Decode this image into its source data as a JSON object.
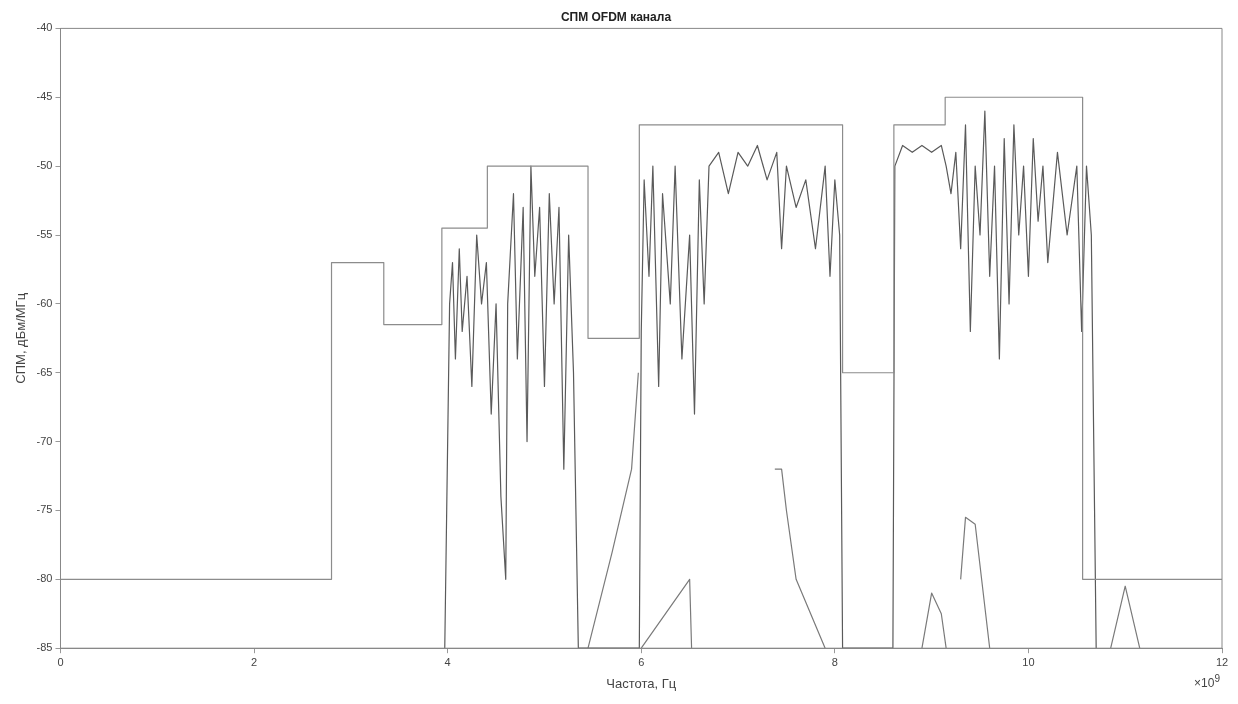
{
  "chart_data": {
    "type": "line",
    "title": "СПМ OFDM канала",
    "xlabel": "Частота, Гц",
    "ylabel": "СПМ, дБм/МГц",
    "annotations": [
      "×10$^{9}$"
    ],
    "xlim": [
      0,
      12
    ],
    "xticks": [
      0,
      2,
      4,
      6,
      8,
      10,
      12
    ],
    "ylim": [
      -85,
      -40
    ],
    "yticks": [
      -85,
      -80,
      -75,
      -70,
      -65,
      -60,
      -55,
      -50,
      -45,
      -40
    ],
    "grid": false,
    "legend": false,
    "marker": "none",
    "line_style": "solid",
    "series": [
      {
        "type": "step",
        "color": "#8c8c8c",
        "x": [
          0,
          2.8,
          3.34,
          3.94,
          4.41,
          5.45,
          5.98,
          8.08,
          8.61,
          9.14,
          10.56,
          12
        ],
        "values": [
          -80,
          -57,
          -61.5,
          -54.5,
          -50,
          -62.5,
          -47,
          -65,
          -47,
          -45,
          -80,
          -80
        ]
      },
      {
        "color": "#5a5a5a",
        "x": [
          3.97,
          4.0,
          4.02,
          4.05,
          4.08,
          4.12,
          4.15,
          4.2,
          4.25,
          4.3,
          4.35,
          4.4,
          4.45,
          4.5,
          4.55,
          4.6,
          4.62,
          4.68,
          4.72,
          4.78,
          4.82,
          4.86,
          4.9,
          4.95,
          5.0,
          5.05,
          5.1,
          5.15,
          5.2,
          5.25,
          5.3,
          5.35,
          5.98,
          6.0,
          6.03,
          6.08,
          6.12,
          6.18,
          6.22,
          6.3,
          6.35,
          6.42,
          6.5,
          6.55,
          6.6,
          6.65,
          6.7,
          6.8,
          6.9,
          7.0,
          7.1,
          7.2,
          7.3,
          7.4,
          7.45,
          7.5,
          7.6,
          7.7,
          7.8,
          7.9,
          7.95,
          8.0,
          8.05,
          8.08,
          8.6,
          8.62,
          8.7,
          8.8,
          8.9,
          9.0,
          9.1,
          9.15,
          9.2,
          9.25,
          9.3,
          9.35,
          9.4,
          9.45,
          9.5,
          9.55,
          9.6,
          9.65,
          9.7,
          9.75,
          9.8,
          9.85,
          9.9,
          9.95,
          10.0,
          10.05,
          10.1,
          10.15,
          10.2,
          10.3,
          10.4,
          10.5,
          10.55,
          10.6,
          10.65,
          10.7
        ],
        "values": [
          -85,
          -70,
          -60,
          -57,
          -64,
          -56,
          -62,
          -58,
          -66,
          -55,
          -60,
          -57,
          -68,
          -60,
          -74,
          -80,
          -60,
          -52,
          -64,
          -53,
          -70,
          -50,
          -58,
          -53,
          -66,
          -52,
          -60,
          -53,
          -72,
          -55,
          -65,
          -85,
          -85,
          -62,
          -51,
          -58,
          -50,
          -66,
          -52,
          -60,
          -50,
          -64,
          -55,
          -68,
          -51,
          -60,
          -50,
          -49,
          -52,
          -49,
          -50,
          -48.5,
          -51,
          -49,
          -56,
          -50,
          -53,
          -51,
          -56,
          -50,
          -58,
          -51,
          -55,
          -85,
          -85,
          -50,
          -48.5,
          -49,
          -48.5,
          -49,
          -48.5,
          -50,
          -52,
          -49,
          -56,
          -47,
          -62,
          -50,
          -55,
          -46,
          -58,
          -50,
          -64,
          -48,
          -60,
          -47,
          -55,
          -50,
          -58,
          -48,
          -54,
          -50,
          -57,
          -49,
          -55,
          -50,
          -62,
          -50,
          -55,
          -85
        ]
      },
      {
        "color": "#7a7a7a",
        "x": [
          5.45,
          5.7,
          5.9,
          5.97,
          5.99,
          6.0,
          6.3,
          6.5,
          6.52,
          6.53,
          7.38,
          7.45,
          7.5,
          7.6,
          7.9,
          7.91,
          8.9,
          9.0,
          9.1,
          9.15,
          9.16,
          9.3,
          9.35,
          9.45,
          9.6,
          9.61,
          10.85,
          11.0,
          11.15
        ],
        "values": [
          -85,
          -78,
          -72,
          -65,
          null,
          -85,
          -82,
          -80,
          -85,
          null,
          -72,
          -72,
          -75,
          -80,
          -85,
          null,
          -85,
          -81,
          -82.5,
          -85,
          null,
          -80,
          -75.5,
          -76,
          -85,
          null,
          -85,
          -80.5,
          -85
        ]
      }
    ]
  }
}
